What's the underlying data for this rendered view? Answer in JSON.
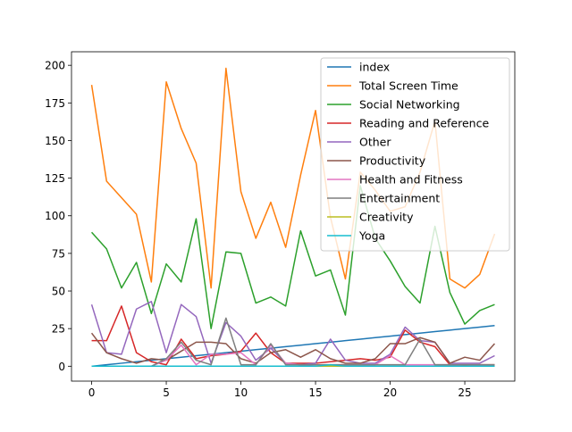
{
  "chart_data": {
    "type": "line",
    "title": "",
    "xlabel": "",
    "ylabel": "",
    "xlim": [
      -1.35,
      28.35
    ],
    "ylim": [
      -9.9,
      209.0
    ],
    "xticks": [
      0,
      5,
      10,
      15,
      20,
      25
    ],
    "yticks": [
      0,
      25,
      50,
      75,
      100,
      125,
      150,
      175,
      200
    ],
    "grid": false,
    "legend_position": "top-right",
    "x": [
      0,
      1,
      2,
      3,
      4,
      5,
      6,
      7,
      8,
      9,
      10,
      11,
      12,
      13,
      14,
      15,
      16,
      17,
      18,
      19,
      20,
      21,
      22,
      23,
      24,
      25,
      26,
      27
    ],
    "series": [
      {
        "name": "index",
        "color": "#1f77b4",
        "values": [
          0,
          1,
          2,
          3,
          4,
          5,
          6,
          7,
          8,
          9,
          10,
          11,
          12,
          13,
          14,
          15,
          16,
          17,
          18,
          19,
          20,
          21,
          22,
          23,
          24,
          25,
          26,
          27
        ]
      },
      {
        "name": "Total Screen Time",
        "color": "#ff7f0e",
        "values": [
          187,
          123,
          112,
          101,
          56,
          189,
          158,
          135,
          52,
          198,
          116,
          85,
          109,
          79,
          127,
          170,
          99,
          58,
          129,
          117,
          103,
          106,
          129,
          163,
          58,
          52,
          61,
          88
        ]
      },
      {
        "name": "Social Networking",
        "color": "#2ca02c",
        "values": [
          89,
          78,
          52,
          69,
          35,
          68,
          56,
          98,
          25,
          76,
          75,
          42,
          46,
          40,
          90,
          60,
          64,
          34,
          120,
          85,
          70,
          53,
          42,
          93,
          49,
          28,
          37,
          41
        ]
      },
      {
        "name": "Reading and Reference",
        "color": "#d62728",
        "values": [
          17,
          17,
          40,
          9,
          3,
          1,
          18,
          5,
          7,
          8,
          10,
          22,
          9,
          2,
          2,
          2,
          3,
          4,
          5,
          4,
          6,
          24,
          16,
          13,
          1,
          1,
          1,
          1
        ]
      },
      {
        "name": "Other",
        "color": "#9467bd",
        "values": [
          41,
          9,
          8,
          38,
          43,
          9,
          41,
          33,
          2,
          29,
          20,
          4,
          12,
          2,
          1,
          2,
          18,
          4,
          2,
          2,
          8,
          26,
          17,
          16,
          2,
          2,
          2,
          7
        ]
      },
      {
        "name": "Productivity",
        "color": "#8c564b",
        "values": [
          22,
          9,
          5,
          2,
          5,
          4,
          10,
          16,
          16,
          15,
          5,
          2,
          9,
          11,
          6,
          11,
          5,
          2,
          2,
          5,
          15,
          15,
          19,
          16,
          2,
          6,
          4,
          15
        ]
      },
      {
        "name": "Health and Fitness",
        "color": "#e377c2",
        "values": [
          0,
          0,
          0,
          0,
          0,
          4,
          14,
          1,
          8,
          8,
          9,
          1,
          14,
          2,
          1,
          0,
          1,
          1,
          1,
          1,
          7,
          1,
          1,
          1,
          1,
          0,
          1,
          0
        ]
      },
      {
        "name": "Entertainment",
        "color": "#7f7f7f",
        "values": [
          0,
          0,
          0,
          0,
          0,
          5,
          16,
          4,
          1,
          32,
          1,
          1,
          15,
          1,
          1,
          1,
          1,
          1,
          1,
          1,
          1,
          1,
          18,
          1,
          1,
          1,
          1,
          1
        ]
      },
      {
        "name": "Creativity",
        "color": "#bcbd22",
        "values": [
          0,
          0,
          0,
          0,
          0,
          0,
          0,
          0,
          0,
          0,
          0,
          0,
          0,
          0,
          0,
          0,
          0,
          0,
          0,
          0,
          0,
          0,
          0,
          0,
          0,
          0,
          0,
          0
        ]
      },
      {
        "name": "Yoga",
        "color": "#17becf",
        "values": [
          0,
          0,
          0,
          0,
          0,
          0,
          0,
          0,
          0,
          0,
          0,
          0,
          0,
          0,
          0,
          0,
          1,
          0,
          0,
          0,
          0,
          0,
          0,
          0,
          0,
          0,
          0,
          0
        ]
      }
    ]
  }
}
